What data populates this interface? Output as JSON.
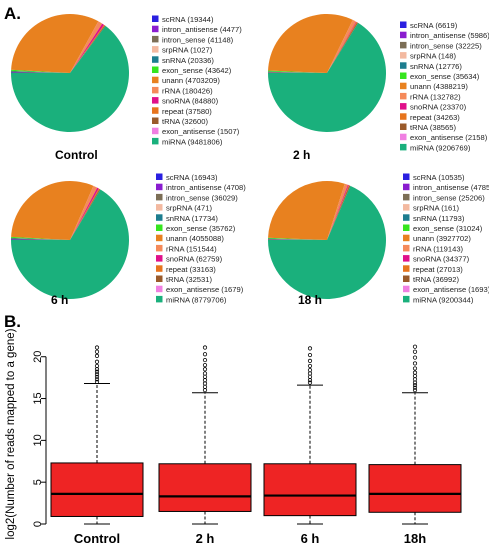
{
  "panel_a_label": "A.",
  "panel_b_label": "B.",
  "colors": {
    "scRNA": "#2a1fe0",
    "intron_antisense": "#8a1ccf",
    "intron_sense": "#7c6e56",
    "srpRNA": "#f3b9a0",
    "snRNA": "#1d7d8f",
    "exon_sense": "#36e51e",
    "unann": "#e8811f",
    "rRNA": "#f58a5a",
    "snoRNA": "#e0108a",
    "repeat": "#e7741d",
    "tRNA": "#9a5a2a",
    "exon_antisense": "#f07fe2",
    "miRNA": "#1ab07c",
    "box_fill": "#ee2424"
  },
  "chart_data": [
    {
      "type": "pie",
      "title": "Control",
      "slices": [
        {
          "label": "scRNA",
          "value": 19344
        },
        {
          "label": "intron_antisense",
          "value": 4477
        },
        {
          "label": "intron_sense",
          "value": 41148
        },
        {
          "label": "srpRNA",
          "value": 1027
        },
        {
          "label": "snRNA",
          "value": 20336
        },
        {
          "label": "exon_sense",
          "value": 43642
        },
        {
          "label": "unann",
          "value": 4703209
        },
        {
          "label": "rRNA",
          "value": 180426
        },
        {
          "label": "snoRNA",
          "value": 84880
        },
        {
          "label": "repeat",
          "value": 37580
        },
        {
          "label": "tRNA",
          "value": 32600
        },
        {
          "label": "exon_antisense",
          "value": 1507
        },
        {
          "label": "miRNA",
          "value": 9481806
        }
      ]
    },
    {
      "type": "pie",
      "title": "2 h",
      "slices": [
        {
          "label": "scRNA",
          "value": 6619
        },
        {
          "label": "intron_antisense",
          "value": 5986
        },
        {
          "label": "intron_sense",
          "value": 32225
        },
        {
          "label": "srpRNA",
          "value": 148
        },
        {
          "label": "snRNA",
          "value": 12776
        },
        {
          "label": "exon_sense",
          "value": 35634
        },
        {
          "label": "unann",
          "value": 4388219
        },
        {
          "label": "rRNA",
          "value": 132782
        },
        {
          "label": "snoRNA",
          "value": 23370
        },
        {
          "label": "repeat",
          "value": 34263
        },
        {
          "label": "tRNA",
          "value": 38565
        },
        {
          "label": "exon_antisense",
          "value": 2158
        },
        {
          "label": "miRNA",
          "value": 9206769
        }
      ]
    },
    {
      "type": "pie",
      "title": "6 h",
      "slices": [
        {
          "label": "scRNA",
          "value": 16943
        },
        {
          "label": "intron_antisense",
          "value": 4708
        },
        {
          "label": "intron_sense",
          "value": 36029
        },
        {
          "label": "srpRNA",
          "value": 471
        },
        {
          "label": "snRNA",
          "value": 17734
        },
        {
          "label": "exon_sense",
          "value": 35762
        },
        {
          "label": "unann",
          "value": 4055088
        },
        {
          "label": "rRNA",
          "value": 151544
        },
        {
          "label": "snoRNA",
          "value": 62759
        },
        {
          "label": "repeat",
          "value": 33163
        },
        {
          "label": "tRNA",
          "value": 32531
        },
        {
          "label": "exon_antisense",
          "value": 1679
        },
        {
          "label": "miRNA",
          "value": 8779706
        }
      ]
    },
    {
      "type": "pie",
      "title": "18 h",
      "slices": [
        {
          "label": "scRNA",
          "value": 10535
        },
        {
          "label": "intron_antisense",
          "value": 4785
        },
        {
          "label": "intron_sense",
          "value": 25206
        },
        {
          "label": "srpRNA",
          "value": 161
        },
        {
          "label": "snRNA",
          "value": 11793
        },
        {
          "label": "exon_sense",
          "value": 31024
        },
        {
          "label": "unann",
          "value": 3927702
        },
        {
          "label": "rRNA",
          "value": 119143
        },
        {
          "label": "snoRNA",
          "value": 34377
        },
        {
          "label": "repeat",
          "value": 27013
        },
        {
          "label": "tRNA",
          "value": 36992
        },
        {
          "label": "exon_antisense",
          "value": 1693
        },
        {
          "label": "miRNA",
          "value": 9200344
        }
      ]
    },
    {
      "type": "box",
      "ylabel": "log2(Number of reads mapped to a gene)",
      "ylim": [
        0,
        22
      ],
      "yticks": [
        0,
        5,
        10,
        15,
        20
      ],
      "categories": [
        "Control",
        "2 h",
        "6 h",
        "18h"
      ],
      "boxes": [
        {
          "min": 0,
          "q1": 0.9,
          "median": 3.6,
          "q3": 7.3,
          "max": 16.8,
          "outliers": [
            17.0,
            17.3,
            17.6,
            17.9,
            18.2,
            18.5,
            18.9,
            19.4,
            20.1,
            20.6,
            21.1
          ]
        },
        {
          "min": 0,
          "q1": 1.5,
          "median": 3.3,
          "q3": 7.2,
          "max": 15.7,
          "outliers": [
            16.0,
            16.4,
            16.8,
            17.2,
            17.6,
            18.0,
            18.5,
            19.0,
            19.6,
            20.3,
            21.1
          ]
        },
        {
          "min": 0,
          "q1": 1.0,
          "median": 3.4,
          "q3": 7.2,
          "max": 16.6,
          "outliers": [
            16.9,
            17.2,
            17.6,
            18.0,
            18.4,
            18.9,
            19.5,
            20.2,
            21.0
          ]
        },
        {
          "min": 0,
          "q1": 1.4,
          "median": 3.6,
          "q3": 7.1,
          "max": 15.7,
          "outliers": [
            16.0,
            16.3,
            16.6,
            16.9,
            17.3,
            17.7,
            18.1,
            18.6,
            19.2,
            19.9,
            20.6,
            21.2
          ]
        }
      ]
    }
  ]
}
